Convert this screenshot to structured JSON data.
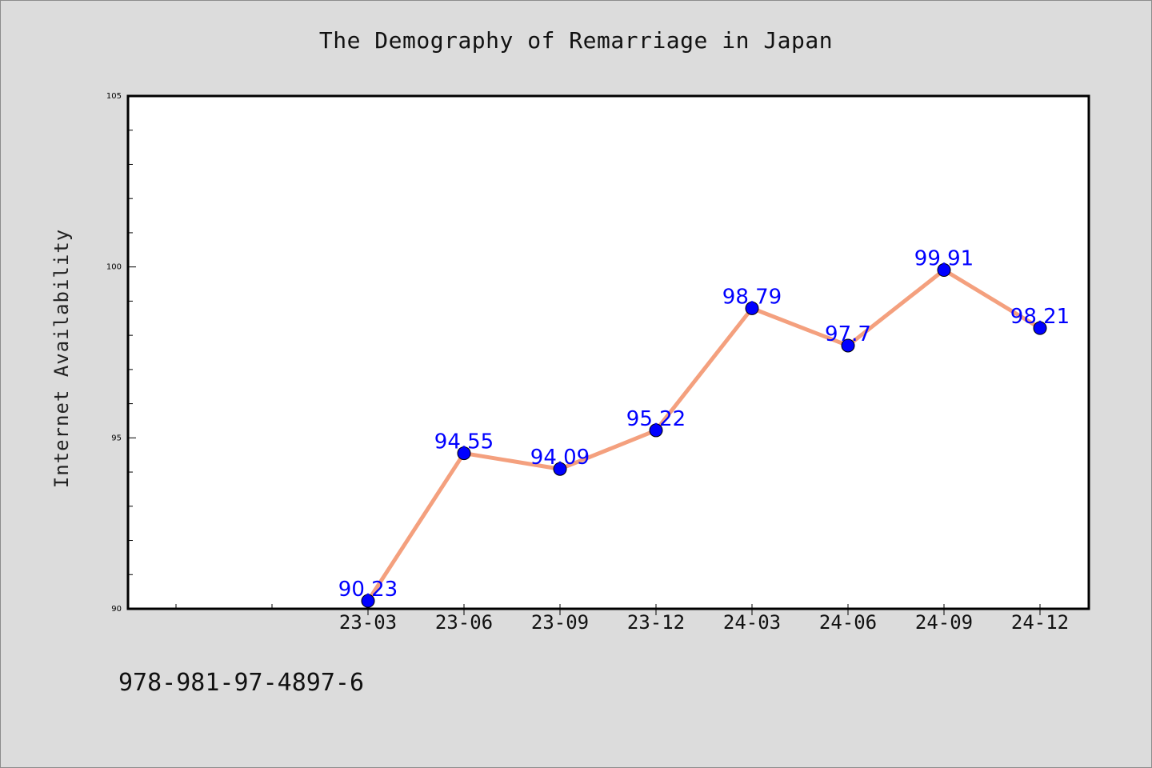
{
  "title": "The Demography of Remarriage in Japan",
  "footer_text": "978-981-97-4897-6",
  "chart_data": {
    "type": "line",
    "title": "The Demography of Remarriage in Japan",
    "xlabel": "",
    "ylabel": "Internet Availability",
    "categories": [
      "23-03",
      "23-06",
      "23-09",
      "23-12",
      "24-03",
      "24-06",
      "24-09",
      "24-12"
    ],
    "series": [
      {
        "values": [
          90.23,
          94.55,
          94.09,
          95.22,
          98.79,
          97.7,
          99.91,
          98.21
        ],
        "labels": [
          "90.23",
          "94.55",
          "94.09",
          "95.22",
          "98.79",
          "97.7",
          "99.91",
          "98.21"
        ]
      }
    ],
    "ylim": [
      90,
      105
    ],
    "y_major_ticks": [
      90,
      95,
      100,
      105
    ],
    "y_tick_labels": [
      "90",
      "95",
      "100",
      "105"
    ],
    "grid": false,
    "legend": "none",
    "colors": {
      "line": "#f4a07e",
      "marker": "#0000ff",
      "label": "#0000ff",
      "plot_background": "#ffffff",
      "page_background": "#dcdcdc"
    }
  }
}
